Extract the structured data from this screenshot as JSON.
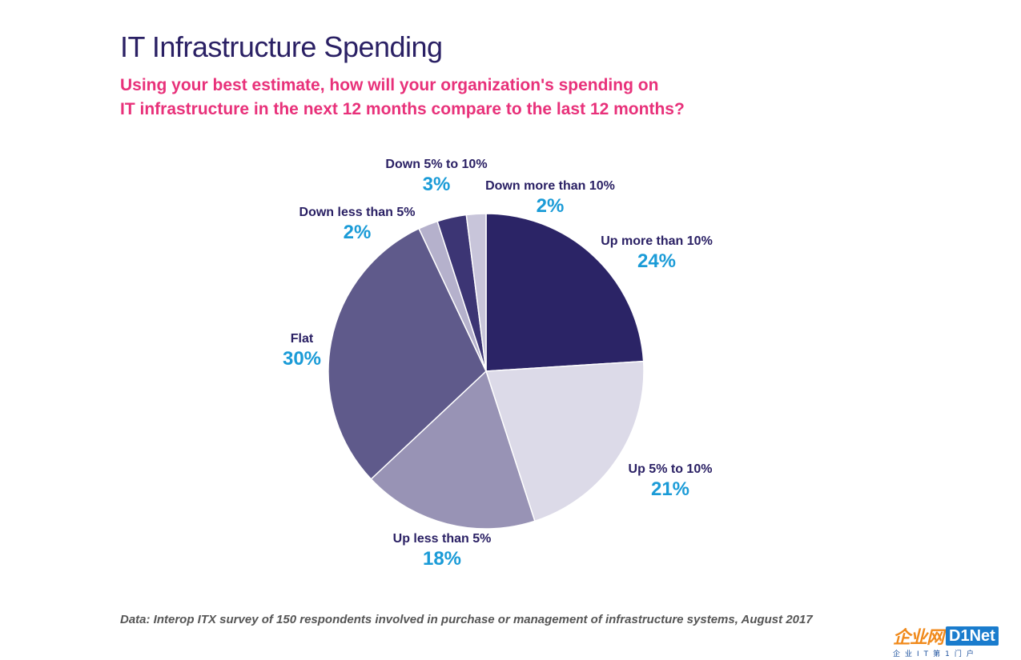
{
  "header": {
    "title": "IT Infrastructure Spending",
    "subtitle_line1": "Using your best estimate, how will your organization's spending on",
    "subtitle_line2": "IT infrastructure in the next 12 months compare to the last 12 months?"
  },
  "chart_data": {
    "type": "pie",
    "title": "IT Infrastructure Spending",
    "subtitle": "Using your best estimate, how will your organization's spending on IT infrastructure in the next 12 months compare to the last 12 months?",
    "categories": [
      "Up more than 10%",
      "Up 5% to 10%",
      "Up less than 5%",
      "Flat",
      "Down less than 5%",
      "Down 5% to 10%",
      "Down more than 10%"
    ],
    "values": [
      24,
      21,
      18,
      30,
      2,
      3,
      2
    ],
    "value_labels": [
      "24%",
      "21%",
      "18%",
      "30%",
      "2%",
      "3%",
      "2%"
    ],
    "colors": [
      "#2b2466",
      "#dcdae8",
      "#9893b5",
      "#5f5a8b",
      "#b5b1cc",
      "#3c3574",
      "#c8c5da"
    ],
    "label_colors": {
      "category": "#2a2064",
      "value": "#1a9bd7"
    },
    "start": "12 o'clock",
    "direction": "clockwise",
    "legend": "none"
  },
  "footer": {
    "source": "Data: Interop ITX survey of 150 respondents involved in purchase or management of infrastructure systems, August 2017"
  },
  "logo": {
    "brand_cn": "企业网",
    "brand_en": "D1Net",
    "tagline": "企业IT第1门户"
  }
}
